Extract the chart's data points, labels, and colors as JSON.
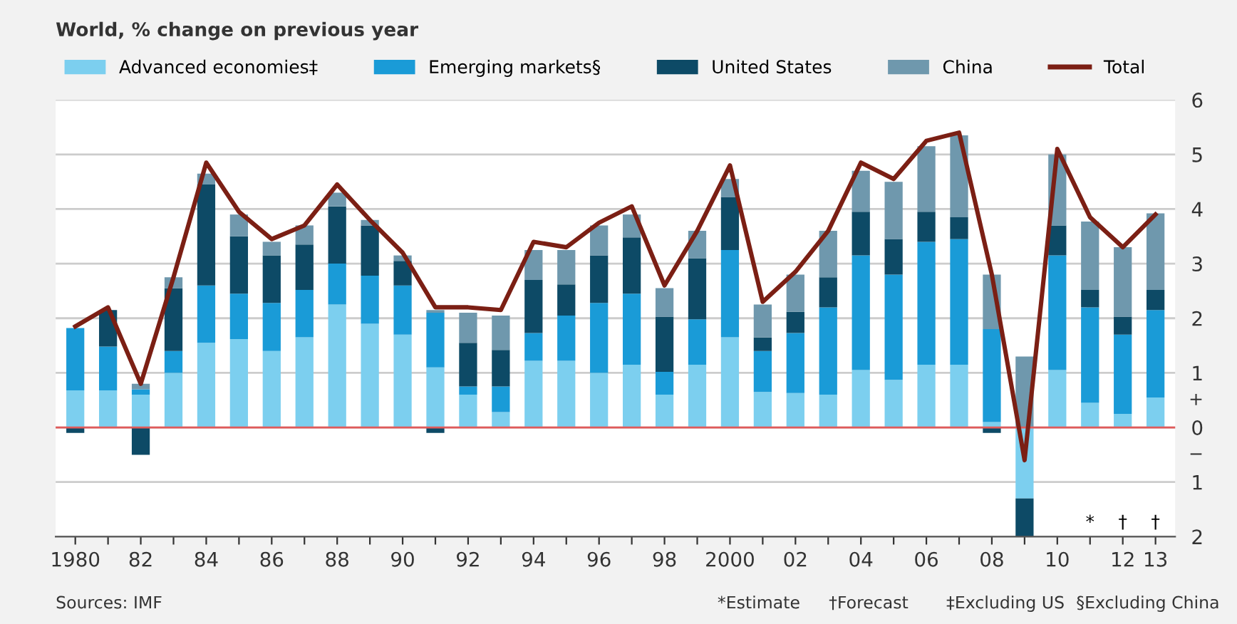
{
  "chart_data": {
    "type": "bar",
    "stacked": true,
    "title": "World, % change on previous year",
    "categories": [
      "1980",
      null,
      "82",
      null,
      "84",
      null,
      "86",
      null,
      "88",
      null,
      "90",
      null,
      "92",
      null,
      "94",
      null,
      "96",
      null,
      "98",
      null,
      "2000",
      null,
      "02",
      null,
      "04",
      null,
      "06",
      null,
      "08",
      null,
      "10",
      null,
      "12",
      "13"
    ],
    "series": [
      {
        "name": "Advanced economies‡",
        "color": "#7ccfef",
        "values": [
          0.68,
          0.68,
          0.6,
          1.0,
          1.55,
          1.62,
          1.4,
          1.65,
          2.25,
          1.9,
          1.7,
          1.1,
          0.6,
          0.28,
          1.22,
          1.22,
          1.0,
          1.15,
          0.6,
          1.15,
          1.65,
          0.65,
          0.63,
          0.6,
          1.05,
          0.87,
          1.15,
          1.15,
          0.1,
          -1.3,
          1.05,
          0.45,
          0.25,
          0.55
        ]
      },
      {
        "name": "Emerging markets§",
        "color": "#1a9bd7",
        "values": [
          1.14,
          0.8,
          0.1,
          0.4,
          1.05,
          0.83,
          0.88,
          0.87,
          0.75,
          0.88,
          0.9,
          1.0,
          0.15,
          0.47,
          0.51,
          0.83,
          1.28,
          1.3,
          0.42,
          0.83,
          1.6,
          0.75,
          1.1,
          1.6,
          2.1,
          1.93,
          2.25,
          2.3,
          1.7,
          0.0,
          2.1,
          1.75,
          1.45,
          1.6
        ]
      },
      {
        "name": "United States",
        "color": "#0d4a66",
        "values": [
          -0.1,
          0.67,
          -0.5,
          1.15,
          1.85,
          1.05,
          0.87,
          0.83,
          1.05,
          0.92,
          0.45,
          -0.1,
          0.8,
          0.67,
          0.97,
          0.57,
          0.87,
          1.03,
          1.01,
          1.12,
          0.97,
          0.25,
          0.39,
          0.55,
          0.8,
          0.65,
          0.55,
          0.4,
          -0.1,
          -0.7,
          0.55,
          0.32,
          0.33,
          0.37
        ]
      },
      {
        "name": "China",
        "color": "#6f98ad",
        "values": [
          0.0,
          0.0,
          0.1,
          0.2,
          0.2,
          0.4,
          0.25,
          0.35,
          0.25,
          0.1,
          0.1,
          0.05,
          0.55,
          0.63,
          0.55,
          0.63,
          0.55,
          0.42,
          0.52,
          0.5,
          0.33,
          0.6,
          0.68,
          0.85,
          0.75,
          1.05,
          1.2,
          1.5,
          1.0,
          1.3,
          1.3,
          1.25,
          1.27,
          1.4
        ]
      },
      {
        "name": "Total",
        "type": "line",
        "color": "#7b1f14",
        "values": [
          1.85,
          2.2,
          0.8,
          2.75,
          4.85,
          3.95,
          3.45,
          3.7,
          4.45,
          3.8,
          3.2,
          2.2,
          2.2,
          2.15,
          3.4,
          3.3,
          3.75,
          4.05,
          2.6,
          3.6,
          4.8,
          2.3,
          2.85,
          3.6,
          4.85,
          4.55,
          5.25,
          5.4,
          2.8,
          -0.6,
          5.1,
          3.85,
          3.3,
          3.9
        ]
      }
    ],
    "ylim": [
      -2,
      6
    ],
    "yticks": [
      {
        "value": -2,
        "label": "2"
      },
      {
        "value": -1,
        "label": "1"
      },
      0,
      1,
      2,
      3,
      4,
      5,
      6
    ],
    "grid": "y",
    "legend": "top",
    "ref_lines": [
      {
        "axis": "y",
        "value": 0,
        "color": "#e05a5a"
      }
    ],
    "annotations": [
      "+",
      "−",
      "*",
      "†",
      "†",
      "Sources: IMF",
      "*Estimate",
      "†Forecast",
      "‡Excluding US",
      "§Excluding China"
    ]
  }
}
